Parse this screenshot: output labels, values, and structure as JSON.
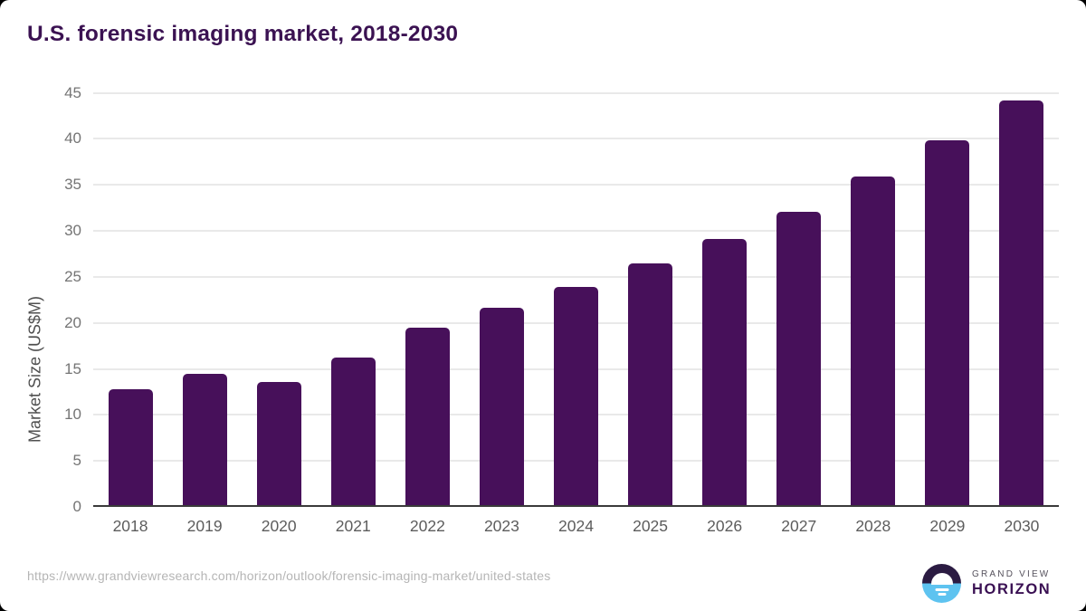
{
  "header": {
    "title": "U.S. forensic imaging market, 2018-2030"
  },
  "chart_data": {
    "type": "bar",
    "title": "U.S. forensic imaging market, 2018-2030",
    "categories": [
      "2018",
      "2019",
      "2020",
      "2021",
      "2022",
      "2023",
      "2024",
      "2025",
      "2026",
      "2027",
      "2028",
      "2029",
      "2030"
    ],
    "values": [
      12.8,
      14.5,
      13.6,
      16.2,
      19.5,
      21.6,
      23.9,
      26.5,
      29.1,
      32.1,
      35.9,
      39.8,
      44.2
    ],
    "xlabel": "",
    "ylabel": "Market Size (US$M)",
    "ylim": [
      0,
      45
    ],
    "yticks": [
      0,
      5,
      10,
      15,
      20,
      25,
      30,
      35,
      40,
      45
    ],
    "grid": true,
    "legend": "none",
    "bar_color": "#47105A"
  },
  "colors": {
    "title_text": "#3B1252",
    "bar": "#47105A",
    "gridline": "#E9E9E9",
    "axis_line": "#3A3A3A",
    "tick_label": "#747474",
    "x_label": "#5C5C5C",
    "axis_title": "#4F4F4F",
    "url_text": "#B5B5B5",
    "logo_navy": "#2B1B42",
    "logo_blue": "#5EC3F0",
    "logo_gray_text": "#55515C",
    "logo_purple_text": "#3A1053"
  },
  "footer": {
    "source_url": "https://www.grandviewresearch.com/horizon/outlook/forensic-imaging-market/united-states",
    "logo": {
      "line1": "GRAND VIEW",
      "line2": "HORIZON"
    }
  }
}
